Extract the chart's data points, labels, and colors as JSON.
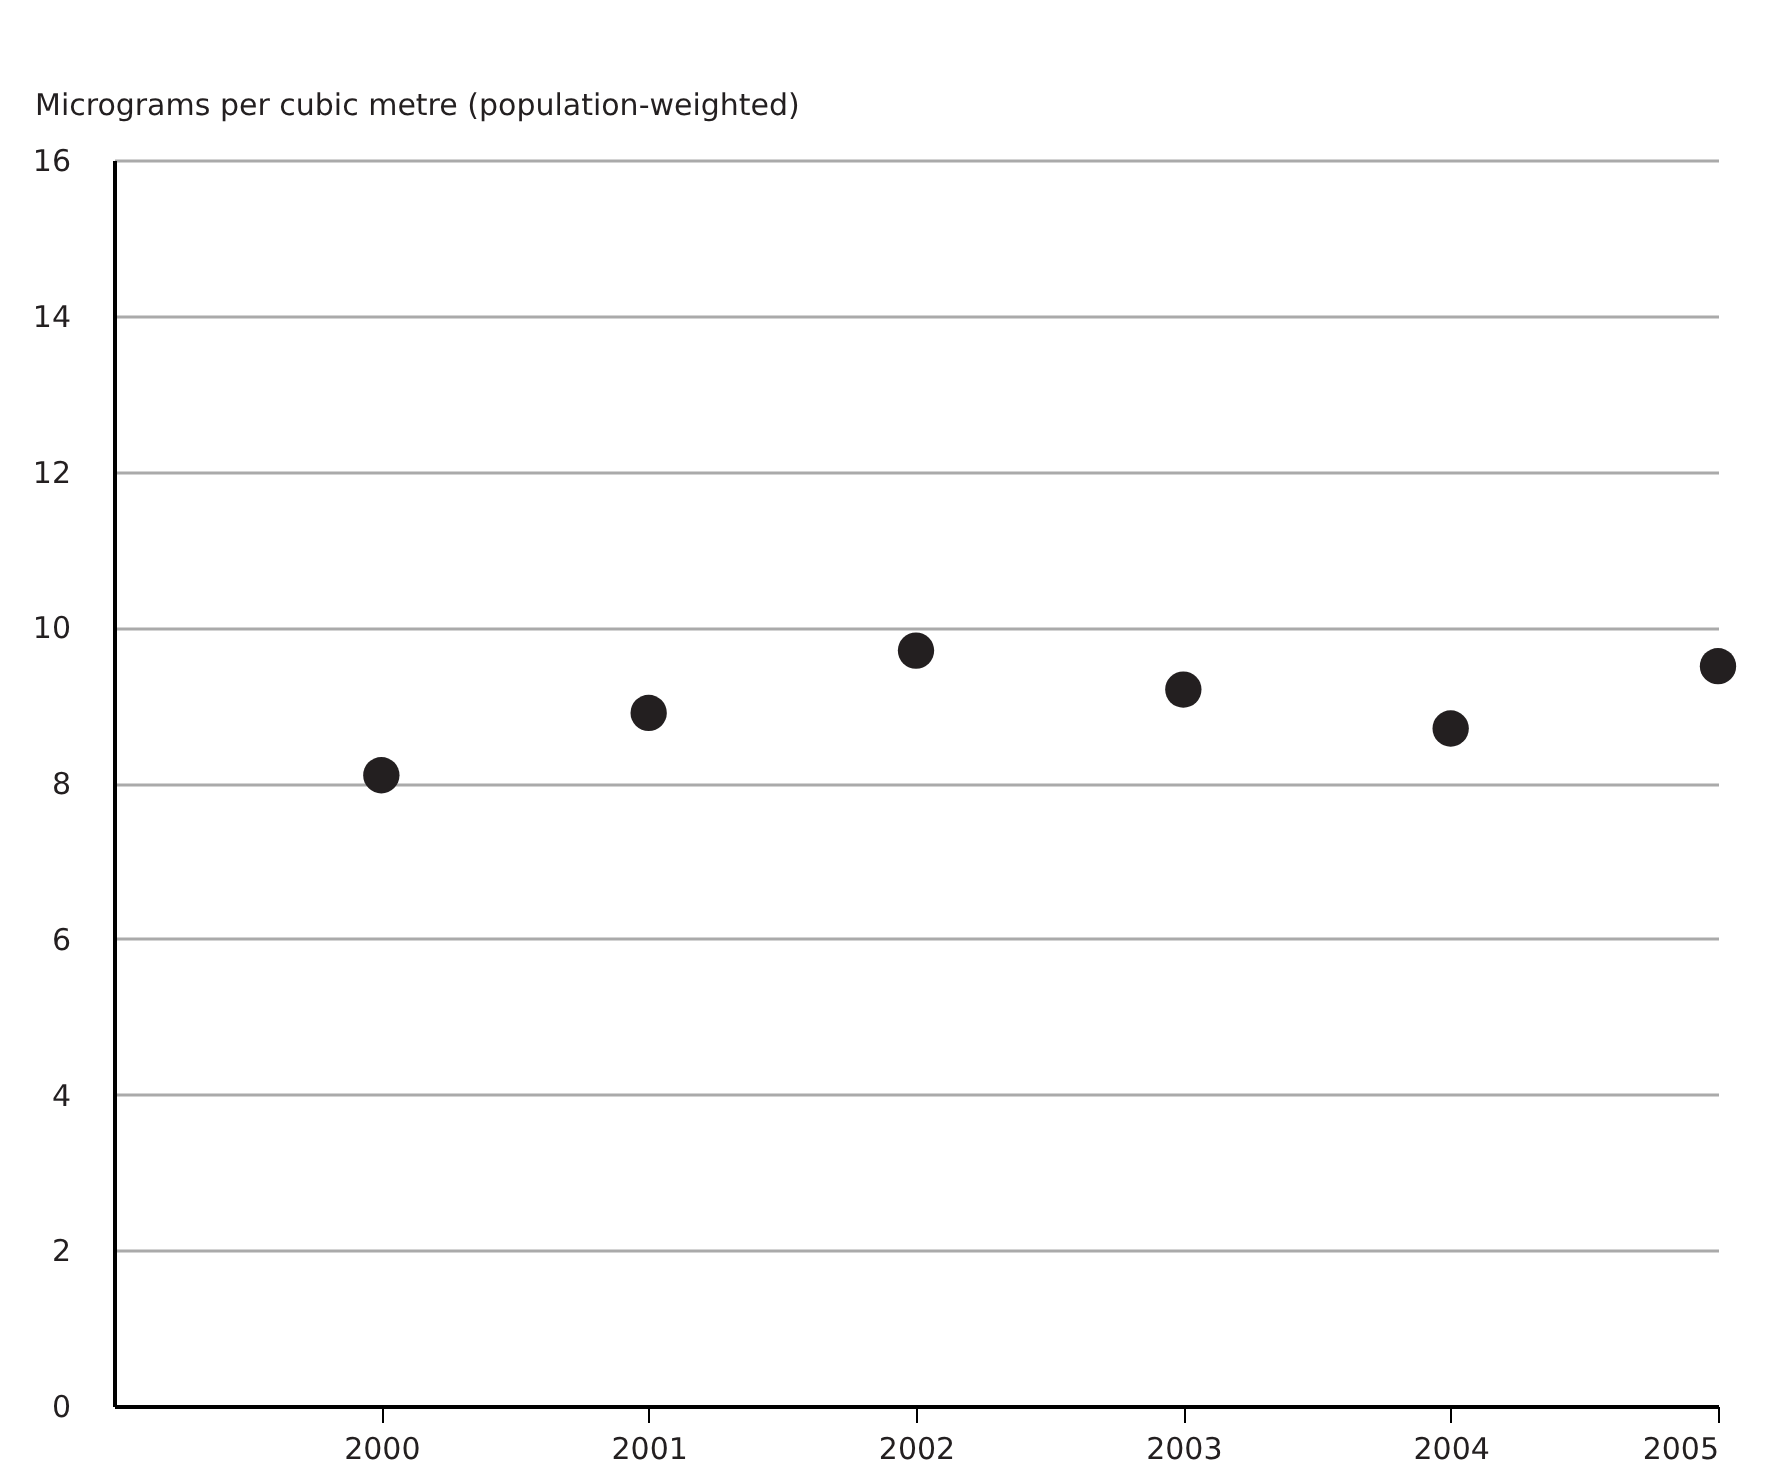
{
  "chart_data": {
    "type": "scatter",
    "ylabel": "Micrograms per cubic metre (population-weighted)",
    "x": [
      2000,
      2001,
      2002,
      2003,
      2004,
      2005
    ],
    "series": [
      {
        "color": "#231f20",
        "values": [
          8.1,
          8.9,
          9.7,
          9.2,
          8.7,
          9.5
        ]
      }
    ],
    "xlim": [
      1999,
      2005
    ],
    "xticks": [
      2000,
      2001,
      2002,
      2003,
      2004,
      2005
    ],
    "ylim": [
      0,
      16
    ],
    "yticks": [
      0,
      2,
      4,
      6,
      8,
      10,
      12,
      14,
      16
    ],
    "grid": "y",
    "marker": "circle",
    "legend": false
  }
}
